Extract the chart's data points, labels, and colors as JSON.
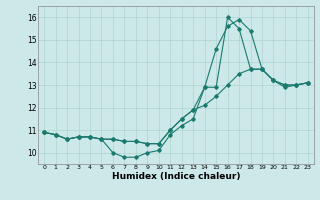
{
  "title": "",
  "xlabel": "Humidex (Indice chaleur)",
  "xlim": [
    -0.5,
    23.5
  ],
  "ylim": [
    9.5,
    16.5
  ],
  "xticks": [
    0,
    1,
    2,
    3,
    4,
    5,
    6,
    7,
    8,
    9,
    10,
    11,
    12,
    13,
    14,
    15,
    16,
    17,
    18,
    19,
    20,
    21,
    22,
    23
  ],
  "yticks": [
    10,
    11,
    12,
    13,
    14,
    15,
    16
  ],
  "bg_color": "#cce8e8",
  "line_color": "#1a7a6e",
  "grid_color": "#b0d4d0",
  "series": [
    {
      "x": [
        0,
        1,
        2,
        3,
        4,
        5,
        6,
        7,
        8,
        9,
        10,
        11,
        12,
        13,
        14,
        15,
        16,
        17,
        18,
        19,
        20,
        21,
        22,
        23
      ],
      "y": [
        10.9,
        10.8,
        10.6,
        10.7,
        10.7,
        10.6,
        10.0,
        9.8,
        9.8,
        10.0,
        10.1,
        10.8,
        11.2,
        11.5,
        12.9,
        14.6,
        15.6,
        15.9,
        15.4,
        13.7,
        13.2,
        12.9,
        13.0,
        13.1
      ]
    },
    {
      "x": [
        0,
        1,
        2,
        3,
        4,
        5,
        6,
        7,
        8,
        9,
        10,
        11,
        12,
        13,
        14,
        15,
        16,
        17,
        18,
        19,
        20,
        21,
        22,
        23
      ],
      "y": [
        10.9,
        10.8,
        10.6,
        10.7,
        10.7,
        10.6,
        10.6,
        10.5,
        10.5,
        10.4,
        10.4,
        11.0,
        11.5,
        11.9,
        12.9,
        12.9,
        16.0,
        15.5,
        13.7,
        13.7,
        13.2,
        13.0,
        13.0,
        13.1
      ]
    },
    {
      "x": [
        0,
        1,
        2,
        3,
        4,
        5,
        6,
        7,
        8,
        9,
        10,
        11,
        12,
        13,
        14,
        15,
        16,
        17,
        18,
        19,
        20,
        21,
        22,
        23
      ],
      "y": [
        10.9,
        10.8,
        10.6,
        10.7,
        10.7,
        10.6,
        10.6,
        10.5,
        10.5,
        10.4,
        10.4,
        11.0,
        11.5,
        11.9,
        12.1,
        12.5,
        13.0,
        13.5,
        13.7,
        13.7,
        13.2,
        13.0,
        13.0,
        13.1
      ]
    }
  ]
}
